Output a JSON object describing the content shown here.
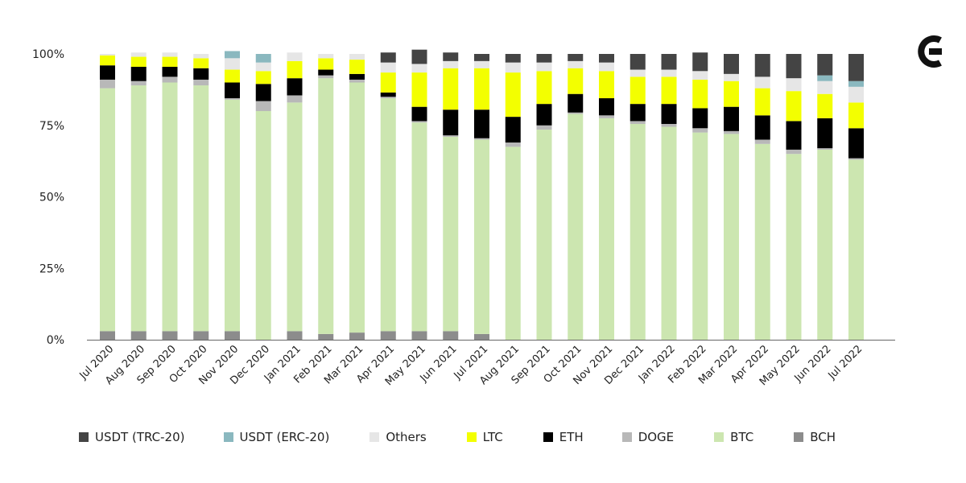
{
  "chart_data": {
    "type": "bar",
    "stacked": true,
    "ylim": [
      0,
      100
    ],
    "yticks": [
      "0%",
      "25%",
      "50%",
      "75%",
      "100%"
    ],
    "grid": false,
    "legend_position": "bottom",
    "categories": [
      "Jul 2020",
      "Aug 2020",
      "Sep 2020",
      "Oct 2020",
      "Nov 2020",
      "Dec 2020",
      "Jan 2021",
      "Feb 2021",
      "Mar 2021",
      "Apr 2021",
      "May 2021",
      "Jun 2021",
      "Jul 2021",
      "Aug 2021",
      "Sep 2021",
      "Oct 2021",
      "Nov 2021",
      "Dec 2021",
      "Jan 2022",
      "Feb 2022",
      "Mar 2022",
      "Apr 2022",
      "May 2022",
      "Jun 2022",
      "Jul 2022"
    ],
    "series": [
      {
        "name": "BCH",
        "color": "#8c8c8c",
        "values": [
          3,
          3,
          3,
          3,
          3,
          0,
          3,
          2,
          2.5,
          3,
          3,
          3,
          2,
          0,
          0,
          0,
          0,
          0,
          0,
          0,
          0,
          0,
          0,
          0,
          0
        ]
      },
      {
        "name": "BTC",
        "color": "#cce6b0",
        "values": [
          85,
          86,
          87,
          86,
          81,
          80,
          80,
          89.5,
          87.5,
          81.5,
          73,
          68,
          68,
          67.5,
          73.5,
          79,
          77.5,
          75.5,
          74.5,
          72.5,
          72,
          68.5,
          65,
          66.5,
          63
        ]
      },
      {
        "name": "DOGE",
        "color": "#b8b8b8",
        "values": [
          3,
          1.5,
          2,
          2,
          0.5,
          3.5,
          2.5,
          1,
          1,
          0.5,
          0.5,
          0.5,
          0.5,
          1.5,
          1.5,
          0.5,
          1,
          1,
          1,
          1.5,
          1,
          1.5,
          1.5,
          0.5,
          0.5
        ]
      },
      {
        "name": "ETH",
        "color": "#000000",
        "values": [
          5,
          5,
          3.5,
          4,
          5.5,
          6,
          6,
          2,
          2,
          1.5,
          5,
          9,
          10,
          9,
          7.5,
          6.5,
          6,
          6,
          7,
          7,
          8.5,
          8.5,
          10,
          10.5,
          10.5
        ]
      },
      {
        "name": "LTC",
        "color": "#f3ff00",
        "values": [
          3.5,
          3.5,
          3.5,
          3.5,
          4.5,
          4.5,
          6,
          4,
          5,
          7,
          12,
          14.5,
          14.5,
          15.5,
          11.5,
          9,
          9.5,
          9.5,
          9.5,
          10,
          9,
          9.5,
          10.5,
          8.5,
          9
        ]
      },
      {
        "name": "Others",
        "color": "#e6e6e6",
        "values": [
          0.5,
          1.5,
          1.5,
          1.5,
          4,
          3,
          3,
          1.5,
          2,
          3.5,
          3,
          2.5,
          2.5,
          3.5,
          3,
          2.5,
          3,
          2.5,
          2.5,
          3,
          2.5,
          4,
          4.5,
          4.5,
          5.5
        ]
      },
      {
        "name": "USDT (ERC-20)",
        "color": "#8ab8bf",
        "values": [
          0,
          0,
          0,
          0,
          2.5,
          3,
          0,
          0,
          0,
          0,
          0,
          0,
          0,
          0,
          0,
          0,
          0,
          0,
          0,
          0,
          0,
          0,
          0,
          2,
          2
        ]
      },
      {
        "name": "USDT (TRC-20)",
        "color": "#444444",
        "values": [
          0,
          0,
          0,
          0,
          0,
          0,
          0,
          0,
          0,
          3.5,
          5,
          3,
          2.5,
          3,
          3,
          2.5,
          3,
          5.5,
          5.5,
          6.5,
          7,
          8,
          8.5,
          7.5,
          9.5
        ]
      }
    ],
    "legend_order": [
      "USDT (TRC-20)",
      "USDT (ERC-20)",
      "Others",
      "LTC",
      "ETH",
      "DOGE",
      "BTC",
      "BCH"
    ]
  }
}
